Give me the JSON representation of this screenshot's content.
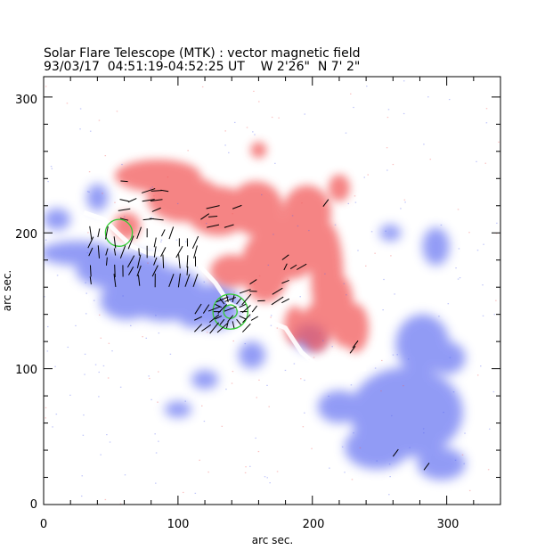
{
  "header": {
    "title_line1": "Solar Flare Telescope (MTK) : vector magnetic field",
    "title_line2": "93/03/17  04:51:19-04:52:25 UT    W 2'26\"  N 7' 2\""
  },
  "axes": {
    "xlabel": "arc sec.",
    "ylabel": "arc sec.",
    "x_range": [
      0,
      340
    ],
    "y_range": [
      0,
      315
    ],
    "x_ticks": [
      "0",
      "100",
      "200",
      "300"
    ],
    "y_ticks": [
      "0",
      "100",
      "200",
      "300"
    ]
  },
  "colors": {
    "positive_polarity": "#f25555",
    "negative_polarity": "#4f5ff0",
    "neutral_line": "#33cc33",
    "transverse_field": "#000000",
    "background": "#ffffff"
  },
  "features": {
    "positive_regions": [
      {
        "x": 85,
        "y": 242,
        "rx": 32,
        "ry": 12
      },
      {
        "x": 105,
        "y": 225,
        "rx": 28,
        "ry": 17
      },
      {
        "x": 130,
        "y": 216,
        "rx": 24,
        "ry": 18
      },
      {
        "x": 158,
        "y": 218,
        "rx": 20,
        "ry": 20
      },
      {
        "x": 165,
        "y": 175,
        "rx": 18,
        "ry": 26
      },
      {
        "x": 184,
        "y": 190,
        "rx": 22,
        "ry": 24
      },
      {
        "x": 196,
        "y": 215,
        "rx": 18,
        "ry": 20
      },
      {
        "x": 211,
        "y": 168,
        "rx": 12,
        "ry": 40
      },
      {
        "x": 222,
        "y": 142,
        "rx": 9,
        "ry": 26
      },
      {
        "x": 232,
        "y": 130,
        "rx": 10,
        "ry": 18
      },
      {
        "x": 203,
        "y": 130,
        "rx": 12,
        "ry": 18
      },
      {
        "x": 187,
        "y": 132,
        "rx": 8,
        "ry": 14
      },
      {
        "x": 140,
        "y": 172,
        "rx": 16,
        "ry": 12
      },
      {
        "x": 62,
        "y": 205,
        "rx": 10,
        "ry": 10
      },
      {
        "x": 220,
        "y": 233,
        "rx": 8,
        "ry": 10
      },
      {
        "x": 160,
        "y": 261,
        "rx": 6,
        "ry": 6
      }
    ],
    "negative_regions": [
      {
        "x": 25,
        "y": 185,
        "rx": 28,
        "ry": 9
      },
      {
        "x": 58,
        "y": 172,
        "rx": 34,
        "ry": 14
      },
      {
        "x": 90,
        "y": 155,
        "rx": 30,
        "ry": 20
      },
      {
        "x": 62,
        "y": 150,
        "rx": 20,
        "ry": 14
      },
      {
        "x": 128,
        "y": 146,
        "rx": 18,
        "ry": 17
      },
      {
        "x": 112,
        "y": 138,
        "rx": 12,
        "ry": 8
      },
      {
        "x": 40,
        "y": 226,
        "rx": 8,
        "ry": 10
      },
      {
        "x": 198,
        "y": 123,
        "rx": 12,
        "ry": 10
      },
      {
        "x": 270,
        "y": 68,
        "rx": 42,
        "ry": 33
      },
      {
        "x": 248,
        "y": 42,
        "rx": 24,
        "ry": 16
      },
      {
        "x": 282,
        "y": 118,
        "rx": 20,
        "ry": 22
      },
      {
        "x": 300,
        "y": 108,
        "rx": 14,
        "ry": 12
      },
      {
        "x": 220,
        "y": 72,
        "rx": 16,
        "ry": 12
      },
      {
        "x": 296,
        "y": 30,
        "rx": 18,
        "ry": 12
      },
      {
        "x": 258,
        "y": 200,
        "rx": 8,
        "ry": 6
      },
      {
        "x": 292,
        "y": 190,
        "rx": 10,
        "ry": 14
      },
      {
        "x": 155,
        "y": 110,
        "rx": 10,
        "ry": 10
      },
      {
        "x": 120,
        "y": 92,
        "rx": 10,
        "ry": 7
      },
      {
        "x": 100,
        "y": 70,
        "rx": 10,
        "ry": 6
      },
      {
        "x": 10,
        "y": 210,
        "rx": 10,
        "ry": 8
      }
    ],
    "neutral_line_points": [
      [
        30,
        215
      ],
      [
        45,
        210
      ],
      [
        55,
        200
      ],
      [
        66,
        190
      ],
      [
        78,
        185
      ],
      [
        95,
        184
      ],
      [
        112,
        180
      ],
      [
        128,
        163
      ],
      [
        138,
        148
      ],
      [
        150,
        142
      ],
      [
        165,
        136
      ],
      [
        180,
        130
      ],
      [
        192,
        112
      ],
      [
        206,
        100
      ],
      [
        220,
        98
      ],
      [
        240,
        100
      ]
    ],
    "green_markers": [
      {
        "x": 56,
        "y": 200,
        "r": 10
      },
      {
        "x": 139,
        "y": 142,
        "r": 13
      },
      {
        "x": 139,
        "y": 142,
        "r": 5
      }
    ]
  }
}
